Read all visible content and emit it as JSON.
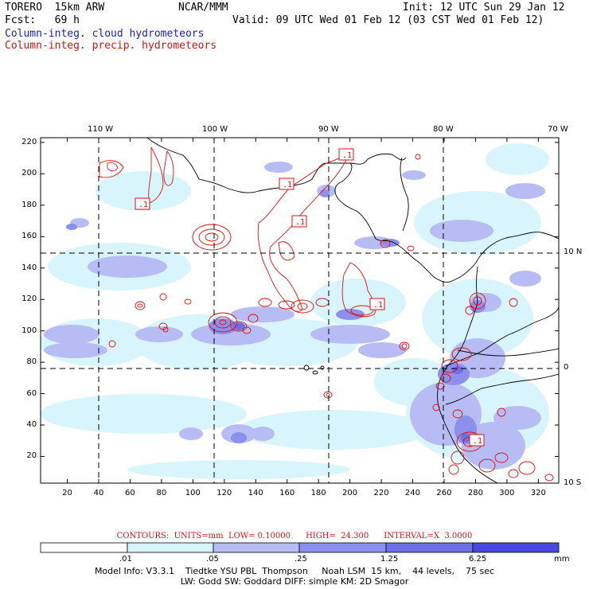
{
  "header": {
    "model": "TORERO  15km ARW",
    "org": "NCAR/MMM",
    "init": "Init: 12 UTC Sun 29 Jan 12",
    "fcst": "Fcst:   69 h",
    "valid": "Valid: 09 UTC Wed 01 Feb 12 (03 CST Wed 01 Feb 12)",
    "legend_cloud": "Column-integ. cloud hydrometeors",
    "legend_precip": "Column-integ. precip. hydrometeors"
  },
  "map": {
    "lon_labels": [
      "110 W",
      "100 W",
      "90 W",
      "80 W",
      "70 W"
    ],
    "lat_labels": [
      "10 N",
      "0",
      "10 S"
    ],
    "x_ticks": [
      "20",
      "40",
      "60",
      "80",
      "100",
      "120",
      "140",
      "160",
      "180",
      "200",
      "220",
      "240",
      "260",
      "280",
      "300",
      "320"
    ],
    "y_ticks": [
      "220",
      "200",
      "180",
      "160",
      "140",
      "120",
      "100",
      "80",
      "60",
      "40",
      "20"
    ],
    "contour_labels": [
      ".1",
      ".1",
      ".1",
      ".1",
      ".1",
      ".1",
      ".1"
    ],
    "colors": {
      "fill_1": "#d8f4fc",
      "fill_2": "#b8bcf4",
      "fill_3": "#8c90ec",
      "fill_4": "#6e6ee8",
      "contour": "#dd1111",
      "coast": "#000000"
    }
  },
  "colorbar": {
    "labels": [
      ".01",
      ".05",
      ".25",
      "1.25",
      "6.25"
    ],
    "unit": "mm",
    "colors": [
      "#ffffff",
      "#d8f4fc",
      "#b8bcf4",
      "#8c90ec",
      "#6e6ee8",
      "#4848e4",
      "#2020e0"
    ]
  },
  "footer": {
    "contours": "CONTOURS:  UNITS=mm  LOW= 0.10000      HIGH=  24.300      INTERVAL=X  3.0000",
    "info1": "Model Info: V3.3.1    Tiedtke YSU PBL  Thompson     Noah LSM  15 km,    44 levels,    75 sec",
    "info2": "LW: Godd SW: Goddard DIFF: simple KM: 2D Smagor"
  }
}
